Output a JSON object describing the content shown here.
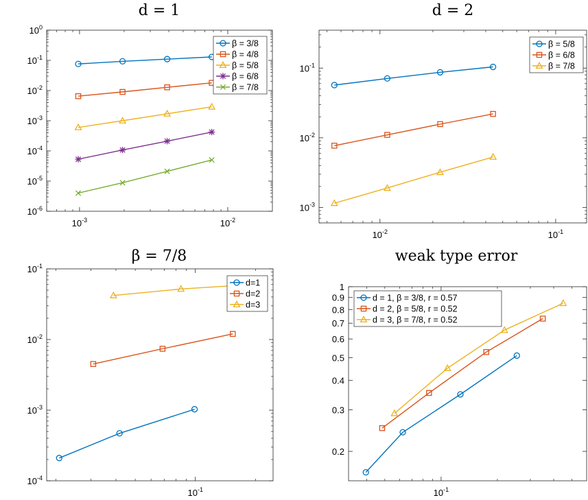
{
  "chart_data": [
    {
      "type": "line",
      "title": "d = 1",
      "xscale": "log",
      "yscale": "log",
      "xlim": [
        0.0006,
        0.02
      ],
      "ylim": [
        1e-06,
        1
      ],
      "xticks": [
        {
          "value": 0.001,
          "base": "10",
          "exp": "-3"
        },
        {
          "value": 0.01,
          "base": "10",
          "exp": "-2"
        }
      ],
      "yticks": [
        {
          "value": 1e-06,
          "base": "10",
          "exp": "-6"
        },
        {
          "value": 1e-05,
          "base": "10",
          "exp": "-5"
        },
        {
          "value": 0.0001,
          "base": "10",
          "exp": "-4"
        },
        {
          "value": 0.001,
          "base": "10",
          "exp": "-3"
        },
        {
          "value": 0.01,
          "base": "10",
          "exp": "-2"
        },
        {
          "value": 0.1,
          "base": "10",
          "exp": "-1"
        },
        {
          "value": 1,
          "base": "10",
          "exp": "0"
        }
      ],
      "legend_position": "top-right",
      "series": [
        {
          "name": "β = 3/8",
          "color": "#0072BD",
          "marker": "circle",
          "x": [
            0.00098,
            0.00195,
            0.0039,
            0.0078
          ],
          "y": [
            0.076,
            0.093,
            0.11,
            0.13
          ]
        },
        {
          "name": "β = 4/8",
          "color": "#D95319",
          "marker": "square",
          "x": [
            0.00098,
            0.00195,
            0.0039,
            0.0078
          ],
          "y": [
            0.0065,
            0.009,
            0.0128,
            0.018
          ]
        },
        {
          "name": "β = 5/8",
          "color": "#EDB120",
          "marker": "triangle",
          "x": [
            0.00098,
            0.00195,
            0.0039,
            0.0078
          ],
          "y": [
            0.0006,
            0.001,
            0.0017,
            0.0029
          ]
        },
        {
          "name": "β = 6/8",
          "color": "#7E2F8E",
          "marker": "star",
          "x": [
            0.00098,
            0.00195,
            0.0039,
            0.0078
          ],
          "y": [
            5.3e-05,
            0.000107,
            0.00021,
            0.00042
          ]
        },
        {
          "name": "β = 7/8",
          "color": "#77AC30",
          "marker": "x",
          "x": [
            0.00098,
            0.00195,
            0.0039,
            0.0078
          ],
          "y": [
            4e-06,
            8.8e-06,
            2.1e-05,
            5e-05
          ]
        }
      ]
    },
    {
      "type": "line",
      "title": "d = 2",
      "xscale": "log",
      "yscale": "log",
      "xlim": [
        0.0045,
        0.15
      ],
      "ylim": [
        0.0006,
        0.35
      ],
      "xticks": [
        {
          "value": 0.01,
          "base": "10",
          "exp": "-2"
        },
        {
          "value": 0.1,
          "base": "10",
          "exp": "-1"
        }
      ],
      "yticks": [
        {
          "value": 0.001,
          "base": "10",
          "exp": "-3"
        },
        {
          "value": 0.01,
          "base": "10",
          "exp": "-2"
        },
        {
          "value": 0.1,
          "base": "10",
          "exp": "-1"
        }
      ],
      "legend_position": "top-right",
      "series": [
        {
          "name": "β = 5/8",
          "color": "#0072BD",
          "marker": "circle",
          "x": [
            0.0055,
            0.011,
            0.022,
            0.044
          ],
          "y": [
            0.057,
            0.071,
            0.087,
            0.104
          ]
        },
        {
          "name": "β = 6/8",
          "color": "#D95319",
          "marker": "square",
          "x": [
            0.0055,
            0.011,
            0.022,
            0.044
          ],
          "y": [
            0.0077,
            0.011,
            0.0157,
            0.022
          ]
        },
        {
          "name": "β = 7/8",
          "color": "#EDB120",
          "marker": "triangle",
          "x": [
            0.0055,
            0.011,
            0.022,
            0.044
          ],
          "y": [
            0.00115,
            0.0019,
            0.0032,
            0.0053
          ]
        }
      ]
    },
    {
      "type": "line",
      "title": "β = 7/8",
      "xscale": "log",
      "yscale": "log",
      "xlim": [
        0.018,
        0.245
      ],
      "ylim": [
        0.0001,
        0.1
      ],
      "xticks": [
        {
          "value": 0.1,
          "base": "10",
          "exp": "-1"
        }
      ],
      "yticks": [
        {
          "value": 0.0001,
          "base": "10",
          "exp": "-4"
        },
        {
          "value": 0.001,
          "base": "10",
          "exp": "-3"
        },
        {
          "value": 0.01,
          "base": "10",
          "exp": "-2"
        },
        {
          "value": 0.1,
          "base": "10",
          "exp": "-1"
        }
      ],
      "legend_position": "top-right",
      "series": [
        {
          "name": "d=1",
          "color": "#0072BD",
          "marker": "circle",
          "x": [
            0.0208,
            0.0417,
            0.0991
          ],
          "y": [
            0.00021,
            0.00047,
            0.00103
          ]
        },
        {
          "name": "d=2",
          "color": "#D95319",
          "marker": "square",
          "x": [
            0.0308,
            0.0685,
            0.154
          ],
          "y": [
            0.0045,
            0.0074,
            0.012
          ]
        },
        {
          "name": "d=3",
          "color": "#EDB120",
          "marker": "triangle",
          "x": [
            0.0389,
            0.0847,
            0.19
          ],
          "y": [
            0.042,
            0.052,
            0.06
          ]
        }
      ]
    },
    {
      "type": "line",
      "title": "weak type error",
      "xscale": "log",
      "yscale": "log",
      "xlim": [
        0.032,
        0.6
      ],
      "ylim": [
        0.15,
        1
      ],
      "xticks": [
        {
          "value": 0.1,
          "base": "10",
          "exp": "-1"
        }
      ],
      "yticks": [
        {
          "value": 0.2,
          "label": "0.2"
        },
        {
          "value": 0.3,
          "label": "0.3"
        },
        {
          "value": 0.4,
          "label": "0.4"
        },
        {
          "value": 0.5,
          "label": "0.5"
        },
        {
          "value": 0.6,
          "label": "0.6"
        },
        {
          "value": 0.7,
          "label": "0.7"
        },
        {
          "value": 0.8,
          "label": "0.8"
        },
        {
          "value": 0.9,
          "label": "0.9"
        },
        {
          "value": 1,
          "label": "1"
        }
      ],
      "legend_position": "top-left",
      "series": [
        {
          "name": "d = 1, β = 3/8, r = 0.57",
          "color": "#0072BD",
          "marker": "circle",
          "x": [
            0.0396,
            0.0624,
            0.1268,
            0.2541
          ],
          "y": [
            0.163,
            0.241,
            0.349,
            0.51
          ]
        },
        {
          "name": "d = 2, β = 5/8, r = 0.52",
          "color": "#D95319",
          "marker": "square",
          "x": [
            0.0484,
            0.0862,
            0.1744,
            0.3497
          ],
          "y": [
            0.251,
            0.354,
            0.528,
            0.732
          ]
        },
        {
          "name": "d = 3, β = 7/8, r = 0.52",
          "color": "#EDB120",
          "marker": "triangle",
          "x": [
            0.0563,
            0.1082,
            0.2181,
            0.4494
          ],
          "y": [
            0.29,
            0.451,
            0.654,
            0.851
          ]
        }
      ]
    }
  ]
}
